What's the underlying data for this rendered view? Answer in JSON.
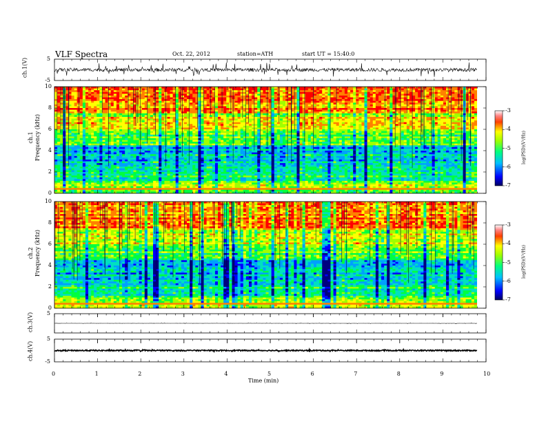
{
  "header": {
    "title": "VLF  Spectra",
    "date": "Oct. 22, 2012",
    "station": "station=ATH",
    "start": "start  UT  =    15:40:0"
  },
  "chart_data": [
    {
      "type": "line",
      "panel": "ch1-waveform",
      "ylabel": "ch.1(V)",
      "ylim": [
        -5,
        5
      ],
      "yticks": [
        "5",
        "-5"
      ],
      "description_level": "noise around 0 V with spikes up to ±3 V"
    },
    {
      "type": "heatmap",
      "panel": "ch1-spectrogram",
      "ylabel_line1": "ch.1",
      "ylabel_line2": "Frequency  (kHz)",
      "ylim": [
        0,
        10
      ],
      "yticks": [
        "0",
        "2",
        "4",
        "6",
        "8",
        "10"
      ],
      "colorbar": {
        "label": "log(PSD)(V²/Hz)",
        "range": [
          -7,
          -3
        ],
        "ticks": [
          "-3",
          "-4",
          "-5",
          "-6",
          "-7"
        ]
      }
    },
    {
      "type": "heatmap",
      "panel": "ch2-spectrogram",
      "ylabel_line1": "ch.2",
      "ylabel_line2": "Frequency  (kHz)",
      "ylim": [
        0,
        10
      ],
      "yticks": [
        "0",
        "2",
        "4",
        "6",
        "8",
        "10"
      ],
      "colorbar": {
        "label": "log(PSD)(V²/Hz)",
        "range": [
          -7,
          -3
        ],
        "ticks": [
          "-3",
          "-4",
          "-5",
          "-6",
          "-7"
        ]
      }
    },
    {
      "type": "line",
      "panel": "ch3-waveform",
      "ylabel": "ch.3(V)",
      "ylim": [
        -5,
        5
      ],
      "yticks": [
        "5"
      ]
    },
    {
      "type": "line",
      "panel": "ch4-waveform",
      "ylabel": "ch.4(V)",
      "ylim": [
        -5,
        5
      ],
      "yticks": [
        "5",
        "-5"
      ]
    }
  ],
  "xaxis": {
    "label": "Time  (min)",
    "range": [
      0,
      10
    ],
    "ticks": [
      "0",
      "1",
      "2",
      "3",
      "4",
      "5",
      "6",
      "7",
      "8",
      "9",
      "10"
    ]
  },
  "colors": {
    "colormap": [
      "#000080",
      "#0000ff",
      "#00a0ff",
      "#00e0c0",
      "#00ff40",
      "#a0ff00",
      "#ffff00",
      "#ff8000",
      "#ff0000",
      "#ffffff"
    ]
  }
}
